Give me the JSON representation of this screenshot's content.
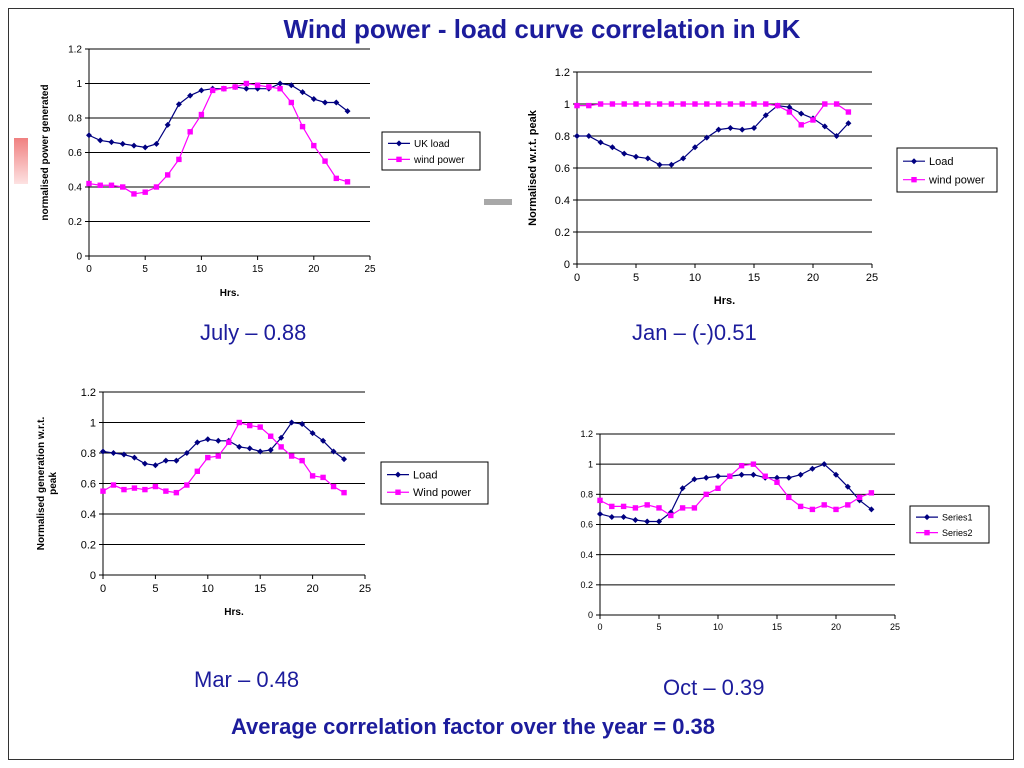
{
  "slide": {
    "title": "Wind power - load curve correlation in UK",
    "footer": "Average correlation factor over the year = 0.38",
    "colors": {
      "title": "#1c1c9c",
      "series_a": "#000080",
      "series_b": "#ff00ff"
    },
    "captions": [
      "July – 0.88",
      "Jan – (-)0.51",
      "Mar – 0.48",
      "Oct – 0.39"
    ]
  },
  "chart_data": [
    {
      "type": "line",
      "caption": "July – 0.88",
      "xlabel": "Hrs.",
      "ylabel": "normalised power generated",
      "xlim": [
        0,
        25
      ],
      "ylim": [
        0,
        1.2
      ],
      "x_ticks": [
        0,
        5,
        10,
        15,
        20,
        25
      ],
      "y_ticks": [
        0,
        0.2,
        0.4,
        0.6,
        0.8,
        1,
        1.2
      ],
      "grid": true,
      "legend": "right",
      "x": [
        0,
        1,
        2,
        3,
        4,
        5,
        6,
        7,
        8,
        9,
        10,
        11,
        12,
        13,
        14,
        15,
        16,
        17,
        18,
        19,
        20,
        21,
        22,
        23
      ],
      "series": [
        {
          "name": "UK load",
          "marker": "diamond",
          "values": [
            0.7,
            0.67,
            0.66,
            0.65,
            0.64,
            0.63,
            0.65,
            0.76,
            0.88,
            0.93,
            0.96,
            0.97,
            0.97,
            0.98,
            0.97,
            0.97,
            0.97,
            1.0,
            0.99,
            0.95,
            0.91,
            0.89,
            0.89,
            0.84
          ]
        },
        {
          "name": "wind power",
          "marker": "square",
          "values": [
            0.42,
            0.41,
            0.41,
            0.4,
            0.36,
            0.37,
            0.4,
            0.47,
            0.56,
            0.72,
            0.82,
            0.96,
            0.97,
            0.98,
            1.0,
            0.99,
            0.98,
            0.97,
            0.89,
            0.75,
            0.64,
            0.55,
            0.45,
            0.43
          ]
        }
      ]
    },
    {
      "type": "line",
      "caption": "Jan – (-)0.51",
      "xlabel": "Hrs.",
      "ylabel": "Normalised w.r.t. peak",
      "xlim": [
        0,
        25
      ],
      "ylim": [
        0,
        1.2
      ],
      "x_ticks": [
        0,
        5,
        10,
        15,
        20,
        25
      ],
      "y_ticks": [
        0,
        0.2,
        0.4,
        0.6,
        0.8,
        1,
        1.2
      ],
      "grid": true,
      "legend": "right",
      "x": [
        0,
        1,
        2,
        3,
        4,
        5,
        6,
        7,
        8,
        9,
        10,
        11,
        12,
        13,
        14,
        15,
        16,
        17,
        18,
        19,
        20,
        21,
        22,
        23
      ],
      "series": [
        {
          "name": "Load",
          "marker": "diamond",
          "values": [
            0.8,
            0.8,
            0.76,
            0.73,
            0.69,
            0.67,
            0.66,
            0.62,
            0.62,
            0.66,
            0.73,
            0.79,
            0.84,
            0.85,
            0.84,
            0.85,
            0.93,
            0.99,
            0.98,
            0.94,
            0.91,
            0.86,
            0.8,
            0.88
          ]
        },
        {
          "name": "wind power",
          "marker": "square",
          "values": [
            0.99,
            0.99,
            1.0,
            1.0,
            1.0,
            1.0,
            1.0,
            1.0,
            1.0,
            1.0,
            1.0,
            1.0,
            1.0,
            1.0,
            1.0,
            1.0,
            1.0,
            0.99,
            0.95,
            0.87,
            0.9,
            1.0,
            1.0,
            0.95
          ]
        }
      ]
    },
    {
      "type": "line",
      "caption": "Mar – 0.48",
      "xlabel": "Hrs.",
      "ylabel": "Normalised generation w.r.t. peak",
      "xlim": [
        0,
        25
      ],
      "ylim": [
        0,
        1.2
      ],
      "x_ticks": [
        0,
        5,
        10,
        15,
        20,
        25
      ],
      "y_ticks": [
        0,
        0.2,
        0.4,
        0.6,
        0.8,
        1,
        1.2
      ],
      "grid": true,
      "legend": "right",
      "x": [
        0,
        1,
        2,
        3,
        4,
        5,
        6,
        7,
        8,
        9,
        10,
        11,
        12,
        13,
        14,
        15,
        16,
        17,
        18,
        19,
        20,
        21,
        22,
        23
      ],
      "series": [
        {
          "name": "Load",
          "marker": "diamond",
          "values": [
            0.81,
            0.8,
            0.79,
            0.77,
            0.73,
            0.72,
            0.75,
            0.75,
            0.8,
            0.87,
            0.89,
            0.88,
            0.88,
            0.84,
            0.83,
            0.81,
            0.82,
            0.9,
            1.0,
            0.99,
            0.93,
            0.88,
            0.81,
            0.76
          ]
        },
        {
          "name": "Wind power",
          "marker": "square",
          "values": [
            0.55,
            0.59,
            0.56,
            0.57,
            0.56,
            0.58,
            0.55,
            0.54,
            0.59,
            0.68,
            0.77,
            0.78,
            0.87,
            1.0,
            0.98,
            0.97,
            0.91,
            0.84,
            0.78,
            0.75,
            0.65,
            0.64,
            0.58,
            0.54
          ]
        }
      ]
    },
    {
      "type": "line",
      "caption": "Oct – 0.39",
      "xlabel": "",
      "ylabel": "",
      "xlim": [
        0,
        25
      ],
      "ylim": [
        0,
        1.2
      ],
      "x_ticks": [
        0,
        5,
        10,
        15,
        20,
        25
      ],
      "y_ticks": [
        0,
        0.2,
        0.4,
        0.6,
        0.8,
        1,
        1.2
      ],
      "grid": true,
      "legend": "right",
      "x": [
        0,
        1,
        2,
        3,
        4,
        5,
        6,
        7,
        8,
        9,
        10,
        11,
        12,
        13,
        14,
        15,
        16,
        17,
        18,
        19,
        20,
        21,
        22,
        23
      ],
      "series": [
        {
          "name": "Series1",
          "marker": "diamond",
          "values": [
            0.67,
            0.65,
            0.65,
            0.63,
            0.62,
            0.62,
            0.68,
            0.84,
            0.9,
            0.91,
            0.92,
            0.92,
            0.93,
            0.93,
            0.91,
            0.91,
            0.91,
            0.93,
            0.97,
            1.0,
            0.93,
            0.85,
            0.76,
            0.7
          ]
        },
        {
          "name": "Series2",
          "marker": "square",
          "values": [
            0.76,
            0.72,
            0.72,
            0.71,
            0.73,
            0.71,
            0.66,
            0.71,
            0.71,
            0.8,
            0.84,
            0.92,
            0.99,
            1.0,
            0.92,
            0.88,
            0.78,
            0.72,
            0.7,
            0.73,
            0.7,
            0.73,
            0.78,
            0.81
          ]
        }
      ]
    }
  ]
}
